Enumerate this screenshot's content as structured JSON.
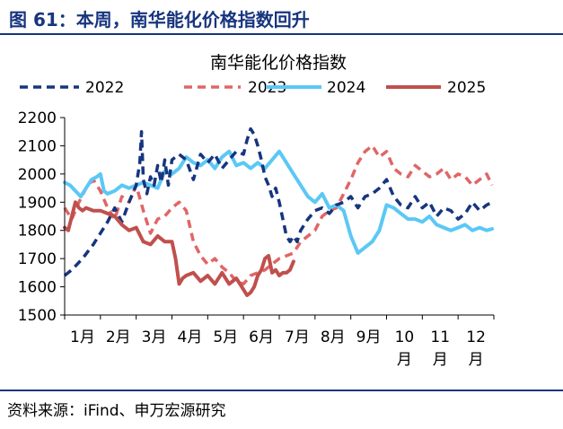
{
  "figure": {
    "title": "图 61：本周，南华能化价格指数回升",
    "source": "资料来源：iFind、申万宏源研究"
  },
  "chart_data": {
    "type": "line",
    "title": "南华能化价格指数",
    "xlabel": "",
    "ylabel": "",
    "ylim": [
      1500,
      2200
    ],
    "yticks": [
      1500,
      1600,
      1700,
      1800,
      1900,
      2000,
      2100,
      2200
    ],
    "xlim": [
      1,
      13
    ],
    "xtick_labels": [
      "1月",
      "2月",
      "3月",
      "4月",
      "5月",
      "6月",
      "7月",
      "8月",
      "9月",
      "10月",
      "11月",
      "12月"
    ],
    "grid": false,
    "legend_position": "top",
    "series": [
      {
        "name": "2022",
        "color": "#17357f",
        "dash": "dash",
        "x": [
          1.0,
          1.2,
          1.5,
          1.8,
          2.0,
          2.2,
          2.4,
          2.6,
          2.8,
          3.0,
          3.1,
          3.15,
          3.2,
          3.3,
          3.4,
          3.5,
          3.6,
          3.7,
          3.8,
          3.9,
          4.0,
          4.2,
          4.4,
          4.6,
          4.8,
          5.0,
          5.2,
          5.4,
          5.6,
          5.8,
          6.0,
          6.1,
          6.2,
          6.3,
          6.4,
          6.5,
          6.6,
          6.7,
          6.8,
          6.9,
          7.0,
          7.1,
          7.2,
          7.3,
          7.4,
          7.5,
          7.6,
          7.7,
          7.8,
          8.0,
          8.2,
          8.4,
          8.6,
          8.8,
          9.0,
          9.2,
          9.4,
          9.6,
          9.8,
          10.0,
          10.2,
          10.4,
          10.6,
          10.8,
          11.0,
          11.2,
          11.4,
          11.6,
          11.8,
          12.0,
          12.2,
          12.4,
          12.6,
          12.8,
          12.95
        ],
        "values": [
          1640,
          1660,
          1700,
          1750,
          1790,
          1830,
          1880,
          1830,
          1900,
          1960,
          2040,
          2150,
          1980,
          1930,
          1990,
          1960,
          2030,
          1970,
          2050,
          1960,
          2050,
          2070,
          2050,
          1980,
          2070,
          2040,
          2070,
          2020,
          2050,
          2080,
          2070,
          2120,
          2160,
          2140,
          2100,
          2050,
          1990,
          1960,
          1920,
          1950,
          1900,
          1840,
          1780,
          1760,
          1780,
          1760,
          1800,
          1820,
          1840,
          1870,
          1880,
          1860,
          1890,
          1900,
          1920,
          1880,
          1920,
          1930,
          1950,
          1980,
          1920,
          1890,
          1880,
          1920,
          1880,
          1900,
          1850,
          1880,
          1870,
          1840,
          1860,
          1900,
          1870,
          1890,
          1900
        ]
      },
      {
        "name": "2023",
        "color": "#e06666",
        "dash": "dash",
        "x": [
          1.0,
          1.2,
          1.4,
          1.6,
          1.8,
          2.0,
          2.2,
          2.4,
          2.6,
          2.8,
          3.0,
          3.2,
          3.4,
          3.6,
          3.8,
          4.0,
          4.2,
          4.4,
          4.6,
          4.8,
          5.0,
          5.2,
          5.4,
          5.6,
          5.8,
          6.0,
          6.2,
          6.4,
          6.6,
          6.8,
          7.0,
          7.2,
          7.4,
          7.6,
          7.8,
          8.0,
          8.2,
          8.4,
          8.6,
          8.8,
          9.0,
          9.2,
          9.4,
          9.6,
          9.8,
          10.0,
          10.2,
          10.4,
          10.6,
          10.8,
          11.0,
          11.2,
          11.4,
          11.6,
          11.8,
          12.0,
          12.2,
          12.4,
          12.6,
          12.8,
          12.95
        ],
        "values": [
          1880,
          1840,
          1900,
          1950,
          1980,
          1940,
          1880,
          1840,
          1920,
          1900,
          1960,
          1870,
          1790,
          1840,
          1850,
          1880,
          1900,
          1870,
          1760,
          1710,
          1680,
          1700,
          1670,
          1650,
          1620,
          1610,
          1640,
          1650,
          1660,
          1680,
          1700,
          1710,
          1720,
          1760,
          1780,
          1800,
          1850,
          1870,
          1880,
          1930,
          1980,
          2040,
          2080,
          2100,
          2060,
          2080,
          2020,
          2000,
          1990,
          2030,
          2010,
          1990,
          2000,
          2020,
          1980,
          2000,
          1990,
          1960,
          1980,
          2000,
          1960
        ]
      },
      {
        "name": "2024",
        "color": "#5bc8f5",
        "dash": "solid",
        "x": [
          1.0,
          1.15,
          1.3,
          1.45,
          1.6,
          1.75,
          1.9,
          2.0,
          2.1,
          2.2,
          2.4,
          2.6,
          2.8,
          3.0,
          3.2,
          3.4,
          3.6,
          3.8,
          4.0,
          4.2,
          4.4,
          4.6,
          4.8,
          5.0,
          5.2,
          5.4,
          5.6,
          5.8,
          6.0,
          6.2,
          6.4,
          6.6,
          6.8,
          7.0,
          7.2,
          7.4,
          7.6,
          7.8,
          8.0,
          8.2,
          8.4,
          8.6,
          8.8,
          9.0,
          9.2,
          9.4,
          9.6,
          9.8,
          10.0,
          10.2,
          10.4,
          10.6,
          10.8,
          11.0,
          11.2,
          11.4,
          11.6,
          11.8,
          12.0,
          12.2,
          12.4,
          12.6,
          12.8,
          12.95
        ],
        "values": [
          1970,
          1960,
          1940,
          1920,
          1950,
          1980,
          1990,
          2000,
          1940,
          1930,
          1940,
          1960,
          1950,
          1960,
          1970,
          1960,
          1950,
          2010,
          2000,
          2020,
          2060,
          2040,
          2030,
          2050,
          2020,
          2060,
          2080,
          2030,
          2040,
          2020,
          2040,
          2020,
          2050,
          2080,
          2040,
          2000,
          1960,
          1920,
          1900,
          1930,
          1880,
          1890,
          1870,
          1780,
          1720,
          1740,
          1760,
          1800,
          1890,
          1880,
          1860,
          1840,
          1840,
          1830,
          1850,
          1820,
          1810,
          1800,
          1810,
          1820,
          1800,
          1810,
          1800,
          1805
        ]
      },
      {
        "name": "2025",
        "color": "#c0504d",
        "dash": "solid",
        "x": [
          1.0,
          1.1,
          1.2,
          1.3,
          1.4,
          1.5,
          1.6,
          1.8,
          2.0,
          2.2,
          2.4,
          2.6,
          2.8,
          3.0,
          3.2,
          3.4,
          3.6,
          3.8,
          4.0,
          4.1,
          4.2,
          4.3,
          4.4,
          4.6,
          4.8,
          5.0,
          5.2,
          5.4,
          5.6,
          5.8,
          6.0,
          6.1,
          6.2,
          6.3,
          6.4,
          6.5,
          6.6,
          6.7,
          6.8,
          6.9,
          7.0,
          7.1,
          7.2,
          7.3,
          7.4
        ],
        "values": [
          1810,
          1800,
          1850,
          1900,
          1880,
          1870,
          1880,
          1870,
          1870,
          1860,
          1850,
          1820,
          1800,
          1810,
          1760,
          1750,
          1780,
          1760,
          1760,
          1700,
          1610,
          1630,
          1640,
          1650,
          1620,
          1640,
          1610,
          1650,
          1610,
          1630,
          1590,
          1570,
          1580,
          1600,
          1640,
          1660,
          1700,
          1710,
          1650,
          1660,
          1640,
          1650,
          1650,
          1660,
          1690
        ]
      }
    ]
  }
}
